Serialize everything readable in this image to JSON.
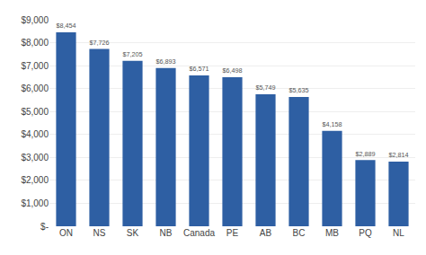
{
  "chart_data": {
    "type": "bar",
    "categories": [
      "ON",
      "NS",
      "SK",
      "NB",
      "Canada",
      "PE",
      "AB",
      "BC",
      "MB",
      "PQ",
      "NL"
    ],
    "values": [
      8454,
      7726,
      7205,
      6893,
      6571,
      6498,
      5749,
      5635,
      4158,
      2889,
      2814
    ],
    "value_labels": [
      "$8,454",
      "$7,726",
      "$7,205",
      "$6,893",
      "$6,571",
      "$6,498",
      "$5,749",
      "$5,635",
      "$4,158",
      "$2,889",
      "$2,814"
    ],
    "color": "#2E5FA3",
    "ylim": [
      0,
      9000
    ],
    "yticks": [
      {
        "value": 0,
        "label": "$-"
      },
      {
        "value": 1000,
        "label": "$1,000"
      },
      {
        "value": 2000,
        "label": "$2,000"
      },
      {
        "value": 3000,
        "label": "$3,000"
      },
      {
        "value": 4000,
        "label": "$4,000"
      },
      {
        "value": 5000,
        "label": "$5,000"
      },
      {
        "value": 6000,
        "label": "$6,000"
      },
      {
        "value": 7000,
        "label": "$7,000"
      },
      {
        "value": 8000,
        "label": "$8,000"
      },
      {
        "value": 9000,
        "label": "$9,000"
      }
    ],
    "grid": true,
    "data_labels": true
  }
}
